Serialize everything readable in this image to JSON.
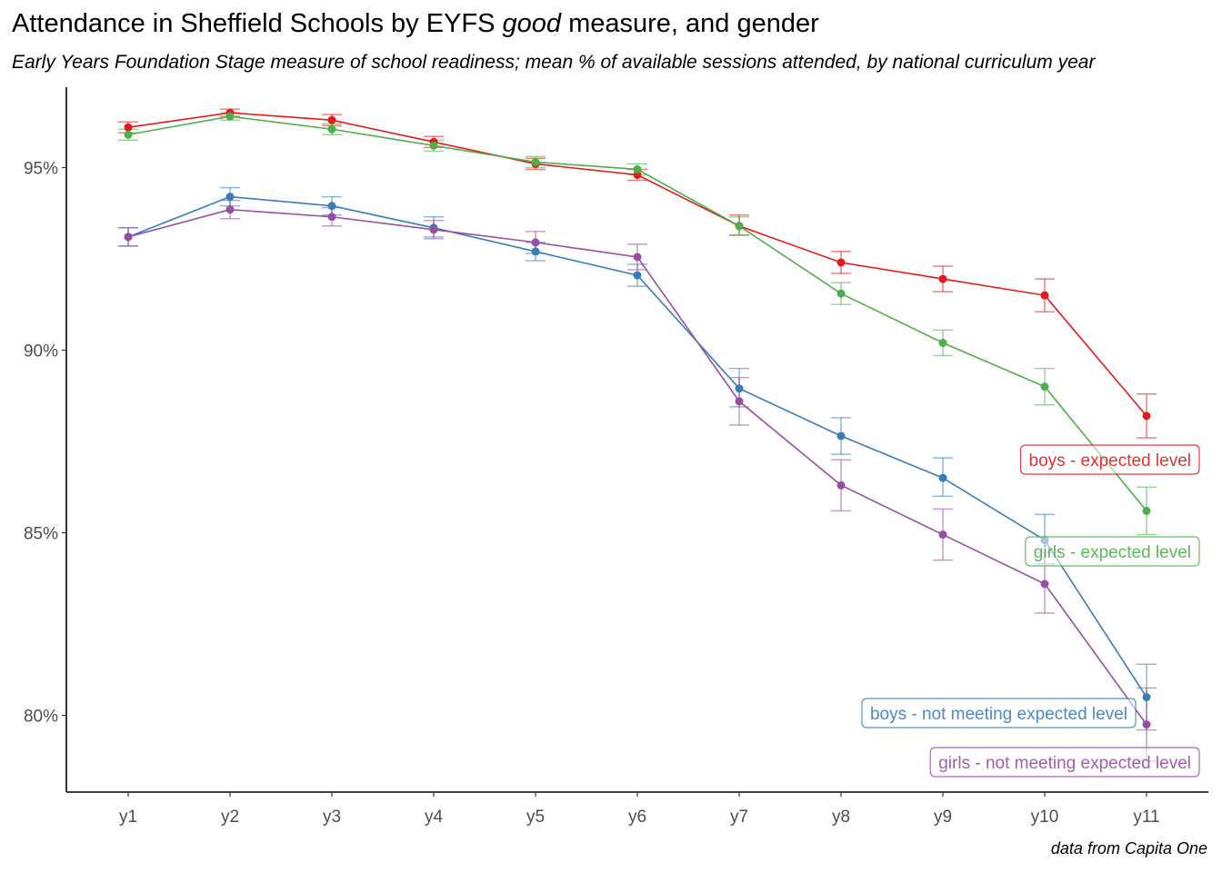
{
  "chart_data": {
    "type": "line",
    "title_pre": "Attendance in Sheffield Schools by EYFS ",
    "title_em": "good",
    "title_post": " measure, and gender",
    "subtitle": "Early Years Foundation Stage measure of school readiness; mean % of available sessions attended, by national curriculum year",
    "caption": "data from Capita One",
    "xlabel": "",
    "ylabel": "",
    "categories": [
      "y1",
      "y2",
      "y3",
      "y4",
      "y5",
      "y6",
      "y7",
      "y8",
      "y9",
      "y10",
      "y11"
    ],
    "ylim": [
      77.9,
      97.2
    ],
    "y_ticks": [
      80,
      85,
      90,
      95
    ],
    "y_tick_labels": [
      "80%",
      "85%",
      "90%",
      "95%"
    ],
    "grid": false,
    "legend": "direct labels at series ends",
    "series": [
      {
        "name": "boys - expected level",
        "color": "#E41A1C",
        "values": [
          96.1,
          96.5,
          96.3,
          95.7,
          95.1,
          94.8,
          93.4,
          92.4,
          91.95,
          91.5,
          88.2
        ],
        "lower": [
          95.95,
          96.4,
          96.15,
          95.55,
          94.95,
          94.65,
          93.15,
          92.1,
          91.6,
          91.05,
          87.6
        ],
        "upper": [
          96.25,
          96.6,
          96.45,
          95.85,
          95.25,
          94.95,
          93.7,
          92.7,
          92.3,
          91.95,
          88.8
        ]
      },
      {
        "name": "girls - expected level",
        "color": "#4DAF4A",
        "values": [
          95.9,
          96.4,
          96.05,
          95.6,
          95.15,
          94.95,
          93.4,
          91.55,
          90.2,
          89.0,
          85.6
        ],
        "lower": [
          95.75,
          96.3,
          95.9,
          95.45,
          95.0,
          94.8,
          93.15,
          91.25,
          89.85,
          88.5,
          84.95
        ],
        "upper": [
          96.05,
          96.5,
          96.2,
          95.75,
          95.3,
          95.1,
          93.65,
          91.85,
          90.55,
          89.5,
          86.25
        ]
      },
      {
        "name": "boys - not meeting expected level",
        "color": "#377EB8",
        "values": [
          93.1,
          94.2,
          93.95,
          93.35,
          92.7,
          92.05,
          88.95,
          87.65,
          86.5,
          84.8,
          80.5
        ],
        "lower": [
          92.85,
          93.95,
          93.7,
          93.1,
          92.45,
          91.75,
          88.45,
          87.15,
          86.0,
          84.15,
          79.6
        ],
        "upper": [
          93.35,
          94.45,
          94.2,
          93.65,
          92.95,
          92.35,
          89.5,
          88.15,
          87.05,
          85.5,
          81.4
        ]
      },
      {
        "name": "girls - not meeting expected level",
        "color": "#984EA3",
        "values": [
          93.1,
          93.85,
          93.65,
          93.3,
          92.95,
          92.55,
          88.6,
          86.3,
          84.95,
          83.6,
          79.75
        ],
        "lower": [
          92.85,
          93.6,
          93.4,
          93.05,
          92.65,
          92.2,
          87.95,
          85.6,
          84.25,
          82.8,
          78.75
        ],
        "upper": [
          93.35,
          94.1,
          93.9,
          93.55,
          93.25,
          92.9,
          89.25,
          87.0,
          85.65,
          84.45,
          80.75
        ]
      }
    ],
    "labels": [
      {
        "series": 0,
        "text": "boys - expected level"
      },
      {
        "series": 1,
        "text": "girls - expected level"
      },
      {
        "series": 2,
        "text": "boys - not meeting expected level"
      },
      {
        "series": 3,
        "text": "girls - not meeting expected level"
      }
    ]
  }
}
